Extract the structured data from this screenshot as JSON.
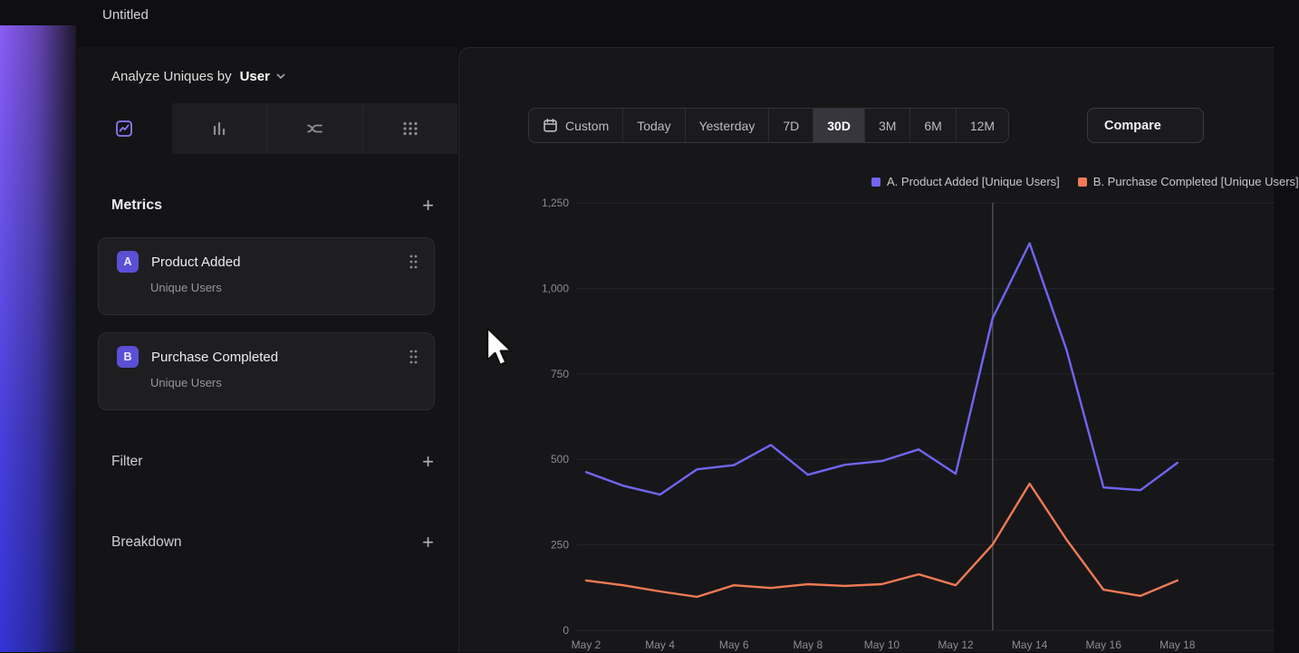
{
  "topbar": {
    "title": "Untitled"
  },
  "sidebar": {
    "analyze": {
      "prefix": "Analyze Uniques by",
      "selected": "User"
    },
    "tabs": [
      {
        "icon": "insights-line-chart-icon",
        "active": true
      },
      {
        "icon": "funnels-bars-icon",
        "active": false
      },
      {
        "icon": "flows-curves-icon",
        "active": false
      },
      {
        "icon": "retention-dots-icon",
        "active": false
      }
    ],
    "metrics": {
      "title": "Metrics",
      "add_label": "+",
      "items": [
        {
          "badge": "A",
          "name": "Product Added",
          "subtitle": "Unique Users"
        },
        {
          "badge": "B",
          "name": "Purchase Completed",
          "subtitle": "Unique Users"
        }
      ]
    },
    "filter": {
      "title": "Filter",
      "add_label": "+"
    },
    "breakdown": {
      "title": "Breakdown",
      "add_label": "+"
    }
  },
  "toolbar": {
    "date_ranges": [
      "Custom",
      "Today",
      "Yesterday",
      "7D",
      "30D",
      "3M",
      "6M",
      "12M"
    ],
    "active_range": "30D",
    "compare_label": "Compare"
  },
  "chart_data": {
    "type": "line",
    "title": "",
    "x_tick_labels": [
      "May 2",
      "May 4",
      "May 6",
      "May 8",
      "May 10",
      "May 12",
      "May 14",
      "May 16",
      "May 18"
    ],
    "x_days": [
      "May 2",
      "May 3",
      "May 4",
      "May 5",
      "May 6",
      "May 7",
      "May 8",
      "May 9",
      "May 10",
      "May 11",
      "May 12",
      "May 13",
      "May 14",
      "May 15",
      "May 16",
      "May 17",
      "May 18"
    ],
    "ylim": [
      0,
      1250
    ],
    "yticks": [
      0,
      250,
      500,
      750,
      1000,
      1250
    ],
    "ytick_labels": [
      "0",
      "250",
      "500",
      "750",
      "1,000",
      "1,250"
    ],
    "grid": "horizontal",
    "legend_position": "top-right",
    "marker_day": "May 13",
    "series": [
      {
        "name": "A. Product Added [Unique Users]",
        "color": "#7165f2",
        "values": [
          463,
          423,
          397,
          471,
          483,
          542,
          455,
          484,
          495,
          529,
          458,
          913,
          1132,
          820,
          418,
          410,
          490
        ]
      },
      {
        "name": "B. Purchase Completed [Unique Users]",
        "color": "#ef7a55",
        "values": [
          146,
          132,
          114,
          98,
          132,
          124,
          135,
          130,
          135,
          164,
          132,
          251,
          429,
          265,
          119,
          101,
          146
        ]
      }
    ]
  }
}
